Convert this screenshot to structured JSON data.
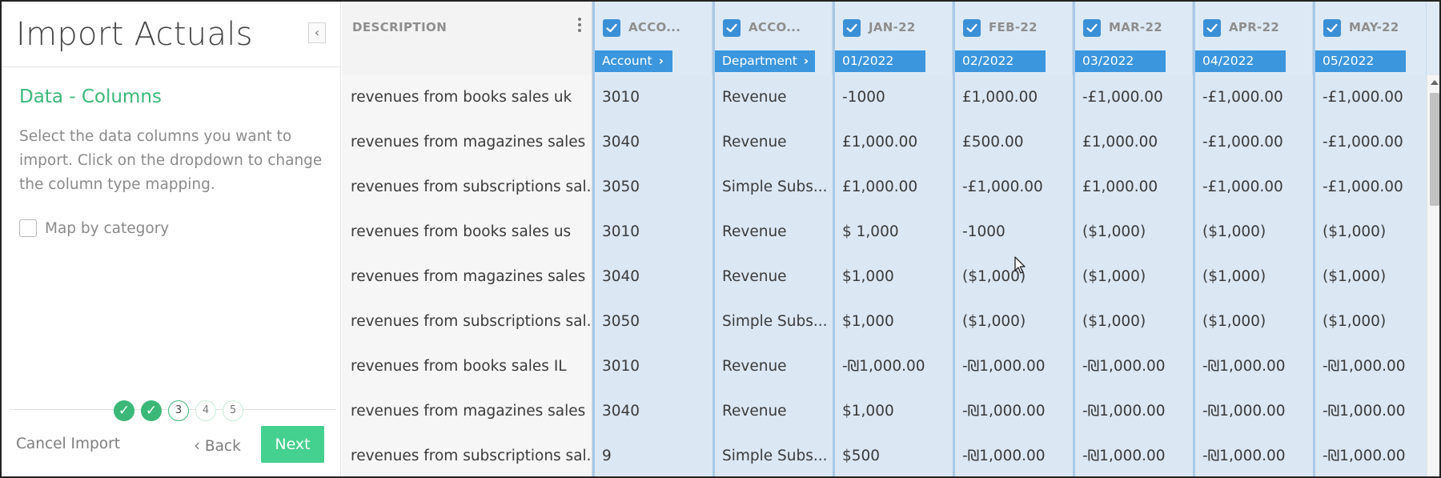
{
  "panel": {
    "title": "Import Actuals",
    "collapse_icon": "chevron-left-icon",
    "section_title": "Data - Columns",
    "instructions": "Select the data columns you want to import. Click on the dropdown to change the column type mapping.",
    "map_by_category": {
      "label": "Map by category",
      "checked": false
    },
    "steps": [
      {
        "label": "✓",
        "state": "done"
      },
      {
        "label": "✓",
        "state": "done"
      },
      {
        "label": "3",
        "state": "current"
      },
      {
        "label": "4",
        "state": "todo"
      },
      {
        "label": "5",
        "state": "todo"
      }
    ],
    "cancel_label": "Cancel Import",
    "back_label": "Back",
    "next_label": "Next"
  },
  "grid": {
    "description_header": "DESCRIPTION",
    "columns": [
      {
        "header": "ACCO...",
        "type": "Account",
        "checked": true,
        "has_arrow": true
      },
      {
        "header": "ACCO...",
        "type": "Department",
        "checked": true,
        "has_arrow": true
      },
      {
        "header": "JAN-22",
        "type": "01/2022",
        "checked": true,
        "has_arrow": false
      },
      {
        "header": "FEB-22",
        "type": "02/2022",
        "checked": true,
        "has_arrow": false
      },
      {
        "header": "MAR-22",
        "type": "03/2022",
        "checked": true,
        "has_arrow": false
      },
      {
        "header": "APR-22",
        "type": "04/2022",
        "checked": true,
        "has_arrow": false
      },
      {
        "header": "MAY-22",
        "type": "05/2022",
        "checked": true,
        "has_arrow": false
      }
    ],
    "rows": [
      {
        "description": "revenues from books sales uk",
        "cells": [
          "3010",
          "Revenue",
          "-1000",
          "£1,000.00",
          "-£1,000.00",
          "-£1,000.00",
          "-£1,000.00"
        ]
      },
      {
        "description": "revenues from magazines sales ...",
        "cells": [
          "3040",
          "Revenue",
          "£1,000.00",
          "£500.00",
          "£1,000.00",
          "-£1,000.00",
          "-£1,000.00"
        ]
      },
      {
        "description": "revenues from subscriptions sal...",
        "cells": [
          "3050",
          "Simple Subs...",
          "£1,000.00",
          "-£1,000.00",
          "£1,000.00",
          "-£1,000.00",
          "-£1,000.00"
        ]
      },
      {
        "description": "revenues from books sales us",
        "cells": [
          "3010",
          "Revenue",
          "$ 1,000",
          "-1000",
          "($1,000)",
          "($1,000)",
          "($1,000)"
        ]
      },
      {
        "description": "revenues from magazines sales ...",
        "cells": [
          "3040",
          "Revenue",
          "$1,000",
          "($1,000)",
          "($1,000)",
          "($1,000)",
          "($1,000)"
        ]
      },
      {
        "description": "revenues from subscriptions sal...",
        "cells": [
          "3050",
          "Simple Subs...",
          "$1,000",
          "($1,000)",
          "($1,000)",
          "($1,000)",
          "($1,000)"
        ]
      },
      {
        "description": "revenues from books sales IL",
        "cells": [
          "3010",
          "Revenue",
          "-₪1,000.00",
          "-₪1,000.00",
          "-₪1,000.00",
          "-₪1,000.00",
          "-₪1,000.00"
        ]
      },
      {
        "description": "revenues from magazines sales ...",
        "cells": [
          "3040",
          "Revenue",
          "$1,000",
          "-₪1,000.00",
          "-₪1,000.00",
          "-₪1,000.00",
          "-₪1,000.00"
        ]
      },
      {
        "description": "revenues from subscriptions sal...",
        "cells": [
          "9",
          "Simple Subs...",
          "$500",
          "-₪1,000.00",
          "-₪1,000.00",
          "-₪1,000.00",
          "-₪1,000.00"
        ]
      }
    ]
  },
  "colors": {
    "accent_green": "#3bb878",
    "next_button": "#44d08e",
    "type_pill": "#3b96dd",
    "checkbox_blue": "#3b8fd6",
    "data_cell_bg": "#dbe7f3"
  }
}
